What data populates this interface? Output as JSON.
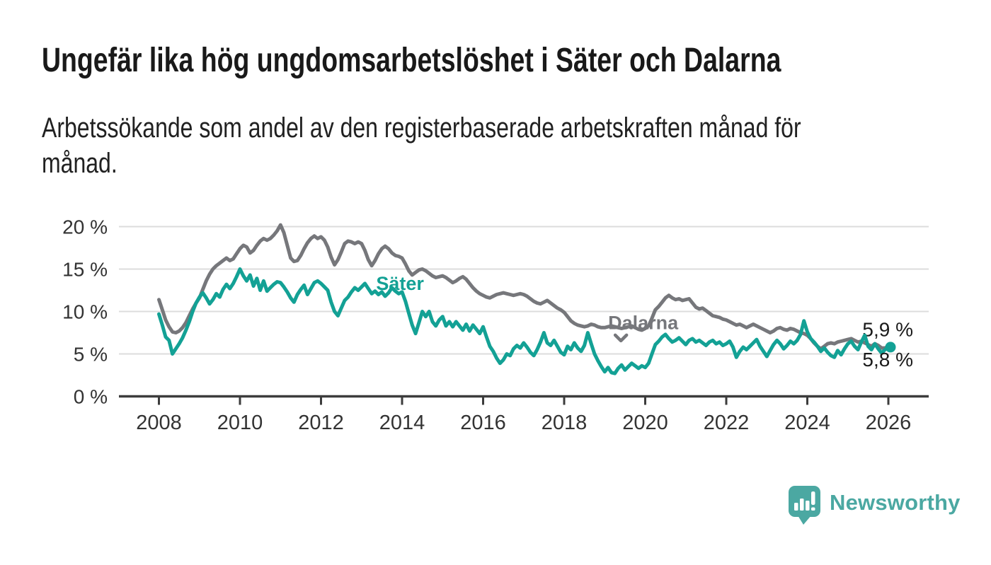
{
  "header": {
    "title": "Ungefär lika hög ungdomsarbetslöshet i Säter och Dalarna",
    "subtitle_lines": [
      "Arbetssökande som andel av den registerbaserade arbetskraften månad för",
      "månad."
    ]
  },
  "chart_data": {
    "type": "line",
    "unit": "%",
    "grid": true,
    "legend_position": "inline-labels",
    "x_start_year": 2008,
    "points_per_year": 12,
    "xlabel": "",
    "ylabel": "",
    "ylim": [
      0,
      21
    ],
    "x_tick_years": [
      "2008",
      "2010",
      "2012",
      "2014",
      "2016",
      "2018",
      "2020",
      "2022",
      "2024",
      "2026"
    ],
    "y_ticks": [
      {
        "value": 0,
        "label": "0 %"
      },
      {
        "value": 5,
        "label": "5 %"
      },
      {
        "value": 10,
        "label": "10 %"
      },
      {
        "value": 15,
        "label": "15 %"
      },
      {
        "value": 20,
        "label": "20 %"
      }
    ],
    "colors": {
      "axis": "#3c3c3c",
      "grid": "#dcdcdc",
      "tick_text": "#333333",
      "end_label_text": "#1a1a1a"
    },
    "series": [
      {
        "name": "Dalarna",
        "color": "#76777b",
        "end_label": {
          "text": "5,9 %",
          "position": "above"
        },
        "end_dot": false,
        "inline_label": {
          "text": "Dalarna",
          "year": 2019.95,
          "value": 7.9,
          "pointer": {
            "year": 2019.4,
            "value": 6.55
          }
        },
        "values": [
          11.4,
          10.2,
          9.0,
          8.2,
          7.6,
          7.5,
          7.7,
          8.1,
          8.7,
          9.5,
          10.3,
          11.0,
          11.6,
          12.6,
          13.6,
          14.4,
          15.0,
          15.4,
          15.7,
          16.0,
          16.3,
          16.0,
          16.2,
          16.8,
          17.4,
          17.8,
          17.6,
          16.9,
          17.2,
          17.8,
          18.3,
          18.6,
          18.4,
          18.6,
          19.0,
          19.5,
          20.2,
          19.3,
          17.8,
          16.3,
          15.9,
          16.0,
          16.6,
          17.4,
          18.1,
          18.6,
          18.9,
          18.6,
          18.8,
          18.4,
          17.6,
          16.4,
          15.5,
          16.1,
          17.0,
          18.0,
          18.3,
          18.2,
          18.0,
          18.2,
          18.0,
          17.2,
          16.1,
          15.4,
          16.0,
          16.8,
          17.4,
          17.7,
          17.4,
          16.9,
          16.6,
          16.5,
          16.3,
          15.6,
          14.8,
          14.3,
          14.6,
          14.9,
          15.0,
          14.8,
          14.5,
          14.2,
          14.0,
          14.1,
          14.2,
          14.0,
          13.7,
          13.4,
          13.6,
          13.9,
          14.1,
          13.8,
          13.3,
          12.8,
          12.4,
          12.1,
          11.9,
          11.7,
          11.6,
          11.8,
          12.0,
          12.1,
          12.2,
          12.1,
          12.0,
          11.9,
          12.0,
          12.1,
          12.0,
          11.8,
          11.5,
          11.2,
          11.0,
          10.9,
          11.1,
          11.3,
          11.0,
          10.7,
          10.4,
          10.2,
          9.9,
          9.4,
          8.9,
          8.6,
          8.4,
          8.3,
          8.2,
          8.3,
          8.5,
          8.4,
          8.2,
          8.1,
          8.1,
          8.2,
          8.3,
          8.2,
          8.1,
          8.0,
          8.1,
          8.2,
          8.3,
          8.1,
          7.9,
          7.8,
          8.0,
          8.3,
          9.2,
          10.2,
          10.6,
          11.1,
          11.6,
          11.9,
          11.6,
          11.4,
          11.5,
          11.3,
          11.4,
          11.5,
          11.0,
          10.5,
          10.3,
          10.4,
          10.1,
          9.8,
          9.5,
          9.4,
          9.3,
          9.1,
          9.0,
          8.8,
          8.6,
          8.4,
          8.5,
          8.3,
          8.1,
          8.3,
          8.5,
          8.3,
          8.1,
          7.9,
          7.7,
          7.5,
          7.7,
          8.0,
          8.1,
          7.9,
          7.8,
          8.0,
          7.9,
          7.7,
          7.5,
          7.4,
          7.2,
          6.8,
          6.3,
          5.9,
          5.6,
          5.9,
          6.2,
          6.3,
          6.2,
          6.4,
          6.5,
          6.6,
          6.7,
          6.8,
          6.6,
          6.4,
          6.5,
          6.3,
          6.1,
          5.9,
          6.2,
          6.0,
          5.7,
          5.7,
          5.9
        ]
      },
      {
        "name": "Säter",
        "color": "#13a195",
        "end_label": {
          "text": "5,8 %",
          "position": "below"
        },
        "end_dot": true,
        "inline_label": {
          "text": "Säter",
          "year": 2013.95,
          "value": 12.55,
          "pointer": null
        },
        "values": [
          9.7,
          8.4,
          7.0,
          6.6,
          5.0,
          5.6,
          6.2,
          6.9,
          7.8,
          8.8,
          10.0,
          11.0,
          11.7,
          12.2,
          11.6,
          10.9,
          11.4,
          12.1,
          11.7,
          12.6,
          13.2,
          12.7,
          13.3,
          14.1,
          15.0,
          14.2,
          13.6,
          14.3,
          13.0,
          13.9,
          12.5,
          13.6,
          12.4,
          12.8,
          13.2,
          13.5,
          13.4,
          12.9,
          12.3,
          11.6,
          11.1,
          12.0,
          12.6,
          13.1,
          12.0,
          12.7,
          13.4,
          13.6,
          13.3,
          12.9,
          12.5,
          11.1,
          10.0,
          9.5,
          10.4,
          11.3,
          11.7,
          12.3,
          12.8,
          12.5,
          12.9,
          13.3,
          12.7,
          12.1,
          12.4,
          12.0,
          12.3,
          11.8,
          12.2,
          12.8,
          12.4,
          12.1,
          12.3,
          11.2,
          9.8,
          8.4,
          7.4,
          8.7,
          10.0,
          9.4,
          10.0,
          8.8,
          8.3,
          9.0,
          9.4,
          8.3,
          8.8,
          8.2,
          8.8,
          8.3,
          7.8,
          8.5,
          7.7,
          8.4,
          7.9,
          7.4,
          8.2,
          7.0,
          5.9,
          5.3,
          4.5,
          3.9,
          4.3,
          5.0,
          4.8,
          5.6,
          6.0,
          5.7,
          6.3,
          5.8,
          5.2,
          4.8,
          5.5,
          6.4,
          7.5,
          6.3,
          6.0,
          6.6,
          5.9,
          5.2,
          4.9,
          5.9,
          5.5,
          6.3,
          5.7,
          5.3,
          6.0,
          7.5,
          6.2,
          5.0,
          4.2,
          3.5,
          2.9,
          3.4,
          2.8,
          2.7,
          3.3,
          3.7,
          3.1,
          3.5,
          3.9,
          3.6,
          3.3,
          3.6,
          3.4,
          3.9,
          5.0,
          6.1,
          6.5,
          7.0,
          7.3,
          6.8,
          6.4,
          6.6,
          6.9,
          6.5,
          6.1,
          6.6,
          6.8,
          6.4,
          6.6,
          6.3,
          6.0,
          6.4,
          6.6,
          6.2,
          6.4,
          6.0,
          6.2,
          6.5,
          5.8,
          4.6,
          5.3,
          5.8,
          5.5,
          5.9,
          6.3,
          6.7,
          5.9,
          5.3,
          4.7,
          5.4,
          6.1,
          6.6,
          6.2,
          5.6,
          6.0,
          6.5,
          6.2,
          6.6,
          7.3,
          8.9,
          7.6,
          6.8,
          6.4,
          5.9,
          5.3,
          5.7,
          5.2,
          4.8,
          4.6,
          5.4,
          4.9,
          5.6,
          6.2,
          6.5,
          5.9,
          5.5,
          6.4,
          7.2,
          5.9,
          5.5,
          6.2,
          5.6,
          5.1,
          5.5,
          5.8
        ]
      }
    ]
  },
  "footer": {
    "brand_name": "Newsworthy",
    "brand_color": "#4ba8a2",
    "logo_icon": "newsworthy-chart-speech-bubble-icon"
  }
}
